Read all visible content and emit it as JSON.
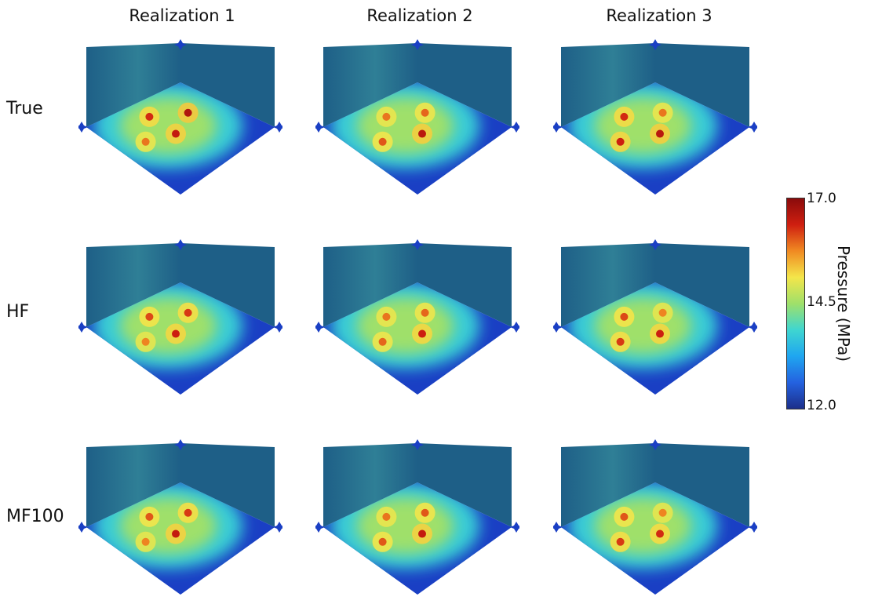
{
  "columns": [
    "Realization 1",
    "Realization 2",
    "Realization 3"
  ],
  "rows": [
    "True",
    "HF",
    "MF100"
  ],
  "colorbar": {
    "title": "Pressure (MPa)",
    "min_label": "12.0",
    "mid_label": "14.5",
    "max_label": "17.0",
    "colors": [
      "#1c2f8a",
      "#2462e0",
      "#1fa6f0",
      "#3fd6d0",
      "#9fe06a",
      "#f4e64a",
      "#f08a22",
      "#cf1f10",
      "#8a0b0b"
    ]
  },
  "cube": {
    "floor_edge_color": "#1a3fc4",
    "wall_color": "#1e5f87",
    "wall_color_light": "#2f7f96"
  },
  "panels": [
    {
      "row": 0,
      "col": 0,
      "hotspots": [
        {
          "u": 0.38,
          "v": 0.3,
          "level": 0.95
        },
        {
          "u": 0.22,
          "v": 0.55,
          "level": 0.75
        },
        {
          "u": 0.55,
          "v": 0.6,
          "level": 0.85
        },
        {
          "u": 0.48,
          "v": 0.85,
          "level": 0.5
        }
      ]
    },
    {
      "row": 0,
      "col": 1,
      "hotspots": [
        {
          "u": 0.38,
          "v": 0.3,
          "level": 0.55
        },
        {
          "u": 0.22,
          "v": 0.55,
          "level": 0.5
        },
        {
          "u": 0.6,
          "v": 0.55,
          "level": 0.9
        },
        {
          "u": 0.48,
          "v": 0.85,
          "level": 0.6
        }
      ]
    },
    {
      "row": 0,
      "col": 2,
      "hotspots": [
        {
          "u": 0.38,
          "v": 0.3,
          "level": 0.5
        },
        {
          "u": 0.22,
          "v": 0.55,
          "level": 0.75
        },
        {
          "u": 0.6,
          "v": 0.55,
          "level": 0.9
        },
        {
          "u": 0.48,
          "v": 0.85,
          "level": 0.8
        }
      ]
    },
    {
      "row": 1,
      "col": 0,
      "hotspots": [
        {
          "u": 0.38,
          "v": 0.3,
          "level": 0.7
        },
        {
          "u": 0.22,
          "v": 0.55,
          "level": 0.65
        },
        {
          "u": 0.55,
          "v": 0.6,
          "level": 0.8
        },
        {
          "u": 0.48,
          "v": 0.85,
          "level": 0.45
        }
      ]
    },
    {
      "row": 1,
      "col": 1,
      "hotspots": [
        {
          "u": 0.38,
          "v": 0.3,
          "level": 0.55
        },
        {
          "u": 0.22,
          "v": 0.55,
          "level": 0.5
        },
        {
          "u": 0.6,
          "v": 0.55,
          "level": 0.8
        },
        {
          "u": 0.48,
          "v": 0.85,
          "level": 0.55
        }
      ]
    },
    {
      "row": 1,
      "col": 2,
      "hotspots": [
        {
          "u": 0.38,
          "v": 0.3,
          "level": 0.45
        },
        {
          "u": 0.22,
          "v": 0.55,
          "level": 0.65
        },
        {
          "u": 0.6,
          "v": 0.55,
          "level": 0.8
        },
        {
          "u": 0.48,
          "v": 0.85,
          "level": 0.7
        }
      ]
    },
    {
      "row": 2,
      "col": 0,
      "hotspots": [
        {
          "u": 0.38,
          "v": 0.3,
          "level": 0.7
        },
        {
          "u": 0.22,
          "v": 0.55,
          "level": 0.6
        },
        {
          "u": 0.55,
          "v": 0.6,
          "level": 0.85
        },
        {
          "u": 0.48,
          "v": 0.85,
          "level": 0.45
        }
      ]
    },
    {
      "row": 2,
      "col": 1,
      "hotspots": [
        {
          "u": 0.38,
          "v": 0.3,
          "level": 0.6
        },
        {
          "u": 0.22,
          "v": 0.55,
          "level": 0.5
        },
        {
          "u": 0.6,
          "v": 0.55,
          "level": 0.85
        },
        {
          "u": 0.48,
          "v": 0.85,
          "level": 0.6
        }
      ]
    },
    {
      "row": 2,
      "col": 2,
      "hotspots": [
        {
          "u": 0.38,
          "v": 0.3,
          "level": 0.45
        },
        {
          "u": 0.22,
          "v": 0.55,
          "level": 0.6
        },
        {
          "u": 0.6,
          "v": 0.55,
          "level": 0.75
        },
        {
          "u": 0.48,
          "v": 0.85,
          "level": 0.7
        }
      ]
    }
  ]
}
